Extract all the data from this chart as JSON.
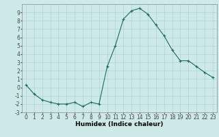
{
  "x": [
    0,
    1,
    2,
    3,
    4,
    5,
    6,
    7,
    8,
    9,
    10,
    11,
    12,
    13,
    14,
    15,
    16,
    17,
    18,
    19,
    20,
    21,
    22,
    23
  ],
  "y": [
    0.3,
    -0.8,
    -1.5,
    -1.8,
    -2.0,
    -2.0,
    -1.8,
    -2.3,
    -1.8,
    -2.0,
    2.5,
    5.0,
    8.2,
    9.2,
    9.5,
    8.8,
    7.5,
    6.2,
    4.5,
    3.2,
    3.2,
    2.5,
    1.8,
    1.2
  ],
  "xlabel": "Humidex (Indice chaleur)",
  "ylim": [
    -3,
    10
  ],
  "xlim": [
    -0.5,
    23.5
  ],
  "yticks": [
    -3,
    -2,
    -1,
    0,
    1,
    2,
    3,
    4,
    5,
    6,
    7,
    8,
    9
  ],
  "xticks": [
    0,
    1,
    2,
    3,
    4,
    5,
    6,
    7,
    8,
    9,
    10,
    11,
    12,
    13,
    14,
    15,
    16,
    17,
    18,
    19,
    20,
    21,
    22,
    23
  ],
  "line_color": "#1a6b5a",
  "marker": "+",
  "bg_color": "#cdeae8",
  "grid_color": "#b0d4d0",
  "axis_color": "#888888",
  "xlabel_fontsize": 6.5,
  "tick_fontsize": 5.5
}
